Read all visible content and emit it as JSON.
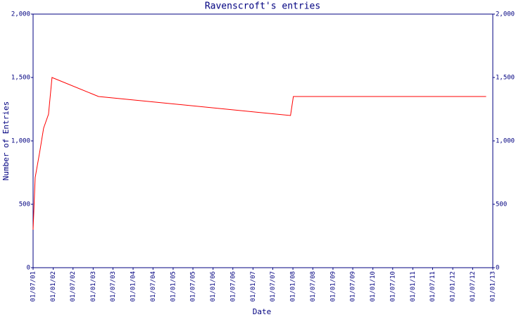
{
  "chart_data": {
    "type": "line",
    "title": "Ravenscroft's entries",
    "x_label": "Date",
    "y_label": "Number of Entries",
    "x": [
      "01/07/01",
      "20/07/01",
      "01/09/01",
      "05/10/01",
      "19/11/01",
      "21/12/01",
      "19/02/03",
      "10/12/07",
      "05/01/08",
      "01/11/12"
    ],
    "series": [
      {
        "name": "entries",
        "color": "#ff0000",
        "values": [
          300,
          710,
          920,
          1100,
          1210,
          1500,
          1350,
          1200,
          1350,
          1350
        ]
      }
    ],
    "xlim": [
      "01/07/01",
      "01/01/13"
    ],
    "xticks": [
      "01/07/01",
      "01/01/02",
      "01/07/02",
      "01/01/03",
      "01/07/03",
      "01/01/04",
      "01/07/04",
      "01/01/05",
      "01/07/05",
      "01/01/06",
      "01/07/06",
      "01/01/07",
      "01/07/07",
      "01/01/08",
      "01/07/08",
      "01/01/09",
      "01/07/09",
      "01/01/10",
      "01/07/10",
      "01/01/11",
      "01/07/11",
      "01/01/12",
      "01/07/12",
      "01/01/13"
    ],
    "ylim": [
      0,
      2000
    ],
    "yticks": [
      0,
      {
        "value": 500,
        "label": "500"
      },
      {
        "value": 1000,
        "label": "1,000"
      },
      {
        "value": 1500,
        "label": "1,500"
      },
      {
        "value": 2000,
        "label": "2,000"
      }
    ],
    "axis_color": "#000080"
  }
}
